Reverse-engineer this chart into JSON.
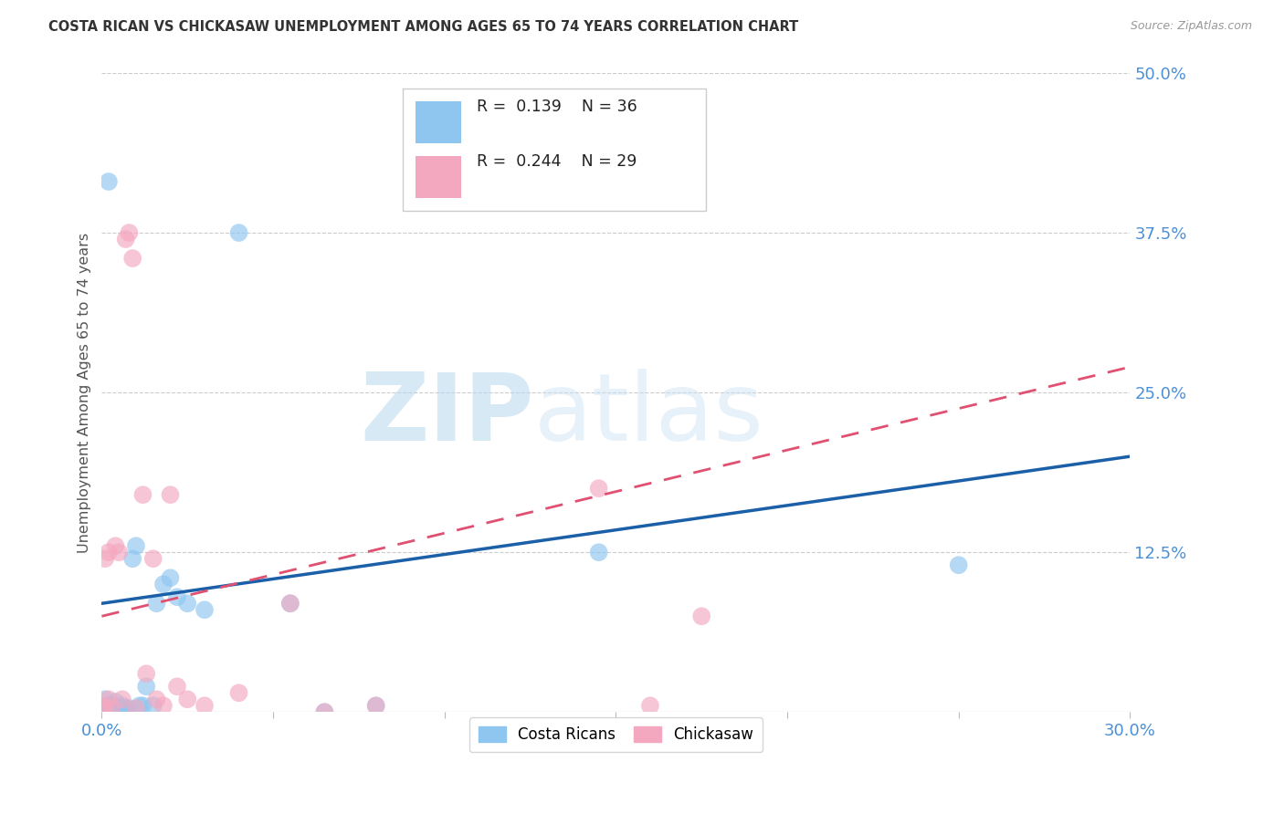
{
  "title": "COSTA RICAN VS CHICKASAW UNEMPLOYMENT AMONG AGES 65 TO 74 YEARS CORRELATION CHART",
  "source": "Source: ZipAtlas.com",
  "ylabel": "Unemployment Among Ages 65 to 74 years",
  "xlim": [
    0.0,
    0.3
  ],
  "ylim": [
    0.0,
    0.5
  ],
  "yticks": [
    0.0,
    0.125,
    0.25,
    0.375,
    0.5
  ],
  "ytick_labels": [
    "",
    "12.5%",
    "25.0%",
    "37.5%",
    "50.0%"
  ],
  "xtick_labels": [
    "0.0%",
    "",
    "",
    "",
    "",
    "",
    "30.0%"
  ],
  "blue_color": "#8ec6f0",
  "pink_color": "#f4a8c0",
  "trendline_blue": "#1a5fa8",
  "trendline_pink": "#e05070",
  "label_color": "#4a90d9",
  "R_blue": "0.139",
  "N_blue": "36",
  "R_pink": "0.244",
  "N_pink": "29",
  "legend_blue_label": "Costa Ricans",
  "legend_pink_label": "Chickasaw",
  "cr_x": [
    0.0005,
    0.001,
    0.001,
    0.0015,
    0.002,
    0.002,
    0.002,
    0.003,
    0.003,
    0.004,
    0.004,
    0.005,
    0.005,
    0.006,
    0.007,
    0.007,
    0.008,
    0.009,
    0.01,
    0.011,
    0.012,
    0.013,
    0.015,
    0.016,
    0.018,
    0.02,
    0.022,
    0.025,
    0.03,
    0.04,
    0.055,
    0.065,
    0.08,
    0.145,
    0.25,
    0.002
  ],
  "cr_y": [
    0.003,
    0.002,
    0.01,
    0.0,
    0.002,
    0.005,
    0.0,
    0.005,
    0.003,
    0.002,
    0.008,
    0.003,
    0.0,
    0.005,
    0.003,
    0.0,
    0.003,
    0.12,
    0.13,
    0.005,
    0.005,
    0.02,
    0.005,
    0.085,
    0.1,
    0.105,
    0.09,
    0.085,
    0.08,
    0.375,
    0.085,
    0.0,
    0.005,
    0.125,
    0.115,
    0.415
  ],
  "ck_x": [
    0.0003,
    0.001,
    0.001,
    0.002,
    0.002,
    0.003,
    0.004,
    0.005,
    0.006,
    0.007,
    0.008,
    0.009,
    0.01,
    0.012,
    0.013,
    0.015,
    0.016,
    0.018,
    0.02,
    0.022,
    0.025,
    0.03,
    0.04,
    0.055,
    0.065,
    0.08,
    0.145,
    0.16,
    0.175
  ],
  "ck_y": [
    0.003,
    0.005,
    0.12,
    0.125,
    0.01,
    0.003,
    0.13,
    0.125,
    0.01,
    0.37,
    0.375,
    0.355,
    0.003,
    0.17,
    0.03,
    0.12,
    0.01,
    0.005,
    0.17,
    0.02,
    0.01,
    0.005,
    0.015,
    0.085,
    0.0,
    0.005,
    0.175,
    0.005,
    0.075
  ],
  "trend_blue_x0": 0.0,
  "trend_blue_y0": 0.085,
  "trend_blue_x1": 0.3,
  "trend_blue_y1": 0.2,
  "trend_pink_x0": 0.0,
  "trend_pink_y0": 0.075,
  "trend_pink_x1": 0.3,
  "trend_pink_y1": 0.27
}
